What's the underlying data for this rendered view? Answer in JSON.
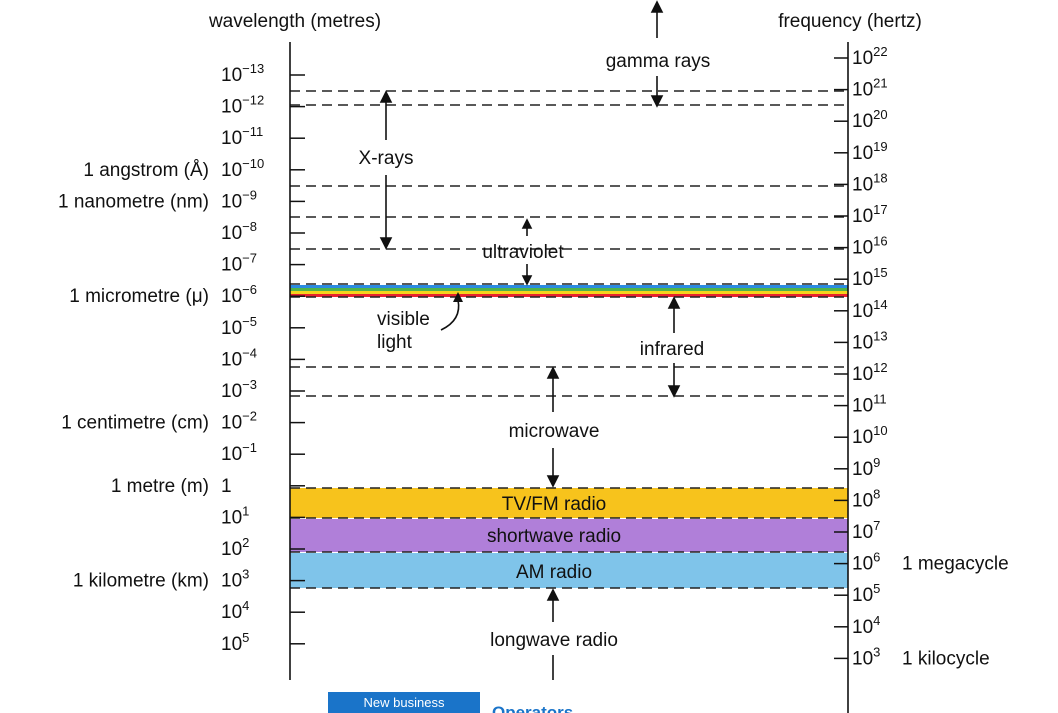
{
  "headers": {
    "wavelength": "wavelength (metres)",
    "frequency": "frequency (hertz)"
  },
  "wavelength_ticks": [
    {
      "base": "10",
      "exp": "−13",
      "name": ""
    },
    {
      "base": "10",
      "exp": "−12",
      "name": ""
    },
    {
      "base": "10",
      "exp": "−11",
      "name": ""
    },
    {
      "base": "10",
      "exp": "−10",
      "name": "1 angstrom (Å)"
    },
    {
      "base": "10",
      "exp": "−9",
      "name": "1 nanometre (nm)"
    },
    {
      "base": "10",
      "exp": "−8",
      "name": ""
    },
    {
      "base": "10",
      "exp": "−7",
      "name": ""
    },
    {
      "base": "10",
      "exp": "−6",
      "name": "1 micrometre (μ)"
    },
    {
      "base": "10",
      "exp": "−5",
      "name": ""
    },
    {
      "base": "10",
      "exp": "−4",
      "name": ""
    },
    {
      "base": "10",
      "exp": "−3",
      "name": ""
    },
    {
      "base": "10",
      "exp": "−2",
      "name": "1 centimetre (cm)"
    },
    {
      "base": "10",
      "exp": "−1",
      "name": ""
    },
    {
      "base": "1",
      "exp": "",
      "name": "1 metre (m)"
    },
    {
      "base": "10",
      "exp": "1",
      "name": ""
    },
    {
      "base": "10",
      "exp": "2",
      "name": ""
    },
    {
      "base": "10",
      "exp": "3",
      "name": "1 kilometre (km)"
    },
    {
      "base": "10",
      "exp": "4",
      "name": ""
    },
    {
      "base": "10",
      "exp": "5",
      "name": ""
    }
  ],
  "frequency_ticks": [
    {
      "base": "10",
      "exp": "22",
      "name": ""
    },
    {
      "base": "10",
      "exp": "21",
      "name": ""
    },
    {
      "base": "10",
      "exp": "20",
      "name": ""
    },
    {
      "base": "10",
      "exp": "19",
      "name": ""
    },
    {
      "base": "10",
      "exp": "18",
      "name": ""
    },
    {
      "base": "10",
      "exp": "17",
      "name": ""
    },
    {
      "base": "10",
      "exp": "16",
      "name": ""
    },
    {
      "base": "10",
      "exp": "15",
      "name": ""
    },
    {
      "base": "10",
      "exp": "14",
      "name": ""
    },
    {
      "base": "10",
      "exp": "13",
      "name": ""
    },
    {
      "base": "10",
      "exp": "12",
      "name": ""
    },
    {
      "base": "10",
      "exp": "11",
      "name": ""
    },
    {
      "base": "10",
      "exp": "10",
      "name": ""
    },
    {
      "base": "10",
      "exp": "9",
      "name": ""
    },
    {
      "base": "10",
      "exp": "8",
      "name": ""
    },
    {
      "base": "10",
      "exp": "7",
      "name": ""
    },
    {
      "base": "10",
      "exp": "6",
      "name": "1 megacycle"
    },
    {
      "base": "10",
      "exp": "5",
      "name": ""
    },
    {
      "base": "10",
      "exp": "4",
      "name": ""
    },
    {
      "base": "10",
      "exp": "3",
      "name": "1 kilocycle"
    }
  ],
  "regions": {
    "gamma": "gamma rays",
    "xray": "X-rays",
    "uv": "ultraviolet",
    "visible_1": "visible",
    "visible_2": "light",
    "infrared": "infrared",
    "microwave": "microwave",
    "tvfm": "TV/FM radio",
    "shortwave": "shortwave radio",
    "am": "AM radio",
    "longwave": "longwave radio"
  },
  "band_colors": {
    "tvfm": "#f7c31c",
    "shortwave": "#b07fd9",
    "am": "#7fc4ea"
  },
  "visible_colors": [
    "#2b8be0",
    "#4fb34a",
    "#f5d41c",
    "#e8232d"
  ],
  "footer": {
    "banner": "New business",
    "link": "Operators"
  }
}
